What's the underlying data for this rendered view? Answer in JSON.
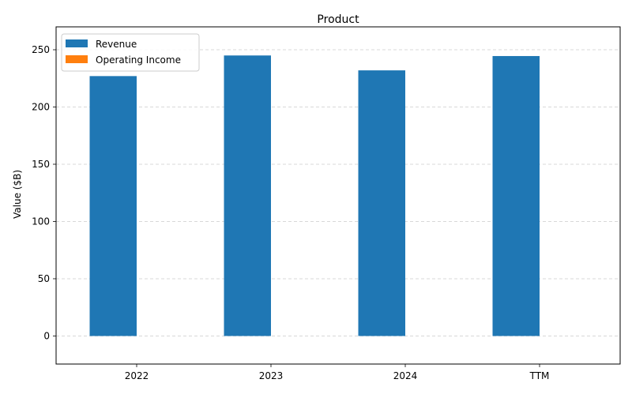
{
  "chart_data": {
    "type": "bar",
    "title": "Product",
    "xlabel": "",
    "ylabel": "Value ($B)",
    "categories": [
      "2022",
      "2023",
      "2024",
      "TTM"
    ],
    "series": [
      {
        "name": "Revenue",
        "color": "#1f77b4",
        "values": [
          227,
          245,
          232,
          244.5
        ]
      },
      {
        "name": "Operating Income",
        "color": "#ff7f0e",
        "values": [
          0,
          0,
          0,
          0
        ]
      }
    ],
    "ylim": [
      -24.5,
      270
    ],
    "yticks": [
      0,
      50,
      100,
      150,
      200,
      250
    ],
    "grid": "y-dashed",
    "legend": "top-left"
  }
}
